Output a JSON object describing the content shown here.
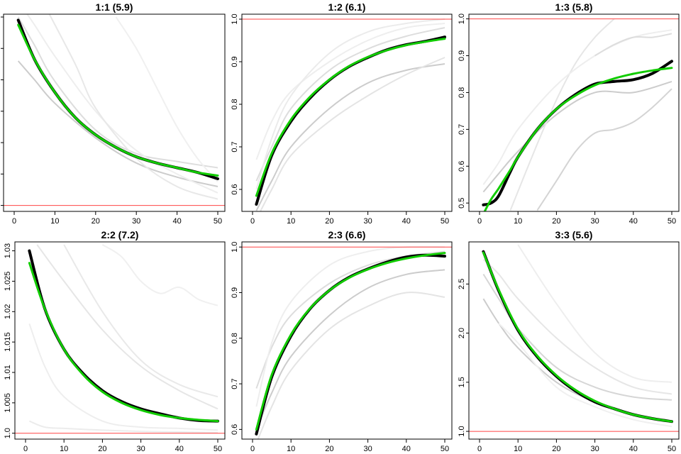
{
  "chart_data": [
    {
      "type": "line",
      "title": "1:1 (5.9)",
      "xlim": [
        0,
        50
      ],
      "ylim": [
        0.98,
        2.2
      ],
      "xticks": [
        0,
        10,
        20,
        30,
        40,
        50
      ],
      "yticks": [
        1.0,
        1.2,
        1.4,
        1.6,
        1.8,
        2.0,
        2.2
      ],
      "reference_line": 1.0,
      "series": [
        {
          "role": "observed",
          "color": "#000000",
          "x": [
            1,
            5,
            10,
            15,
            20,
            25,
            30,
            35,
            40,
            45,
            50
          ],
          "y": [
            2.18,
            1.93,
            1.72,
            1.56,
            1.45,
            1.37,
            1.31,
            1.27,
            1.24,
            1.21,
            1.17
          ]
        },
        {
          "role": "fitted",
          "color": "#11cc00",
          "x": [
            1,
            5,
            10,
            15,
            20,
            25,
            30,
            35,
            40,
            45,
            50
          ],
          "y": [
            2.15,
            1.93,
            1.72,
            1.56,
            1.45,
            1.37,
            1.31,
            1.27,
            1.24,
            1.21,
            1.19
          ]
        },
        {
          "role": "individual",
          "color": "#cccccc",
          "x": [
            1,
            5,
            10,
            20,
            30,
            40,
            50
          ],
          "y": [
            1.92,
            1.8,
            1.65,
            1.43,
            1.27,
            1.18,
            1.12
          ]
        },
        {
          "role": "individual",
          "color": "#dddddd",
          "x": [
            1,
            5,
            10,
            20,
            30,
            40,
            50
          ],
          "y": [
            2.2,
            2.02,
            1.79,
            1.48,
            1.33,
            1.28,
            1.24
          ]
        },
        {
          "role": "individual",
          "color": "#eeeeee",
          "x": [
            1,
            5,
            10,
            20,
            30,
            40,
            50
          ],
          "y": [
            2.3,
            2.15,
            1.95,
            1.6,
            1.35,
            1.2,
            1.08
          ]
        },
        {
          "role": "individual",
          "color": "#e8e8e8",
          "x": [
            8,
            15,
            20,
            30,
            40,
            50
          ],
          "y": [
            2.25,
            1.9,
            1.62,
            1.3,
            1.12,
            1.04
          ]
        },
        {
          "role": "individual",
          "color": "#f0f0f0",
          "x": [
            25,
            30,
            35,
            40,
            45,
            50
          ],
          "y": [
            2.2,
            2.0,
            1.75,
            1.5,
            1.3,
            1.15
          ]
        }
      ]
    },
    {
      "type": "line",
      "title": "1:2 (6.1)",
      "xlim": [
        0,
        50
      ],
      "ylim": [
        0.555,
        1.005
      ],
      "xticks": [
        0,
        10,
        20,
        30,
        40,
        50
      ],
      "yticks": [
        0.6,
        0.7,
        0.8,
        0.9,
        1.0
      ],
      "reference_line": 1.0,
      "series": [
        {
          "role": "observed",
          "color": "#000000",
          "x": [
            1,
            5,
            10,
            15,
            20,
            25,
            30,
            35,
            40,
            45,
            50
          ],
          "y": [
            0.565,
            0.68,
            0.76,
            0.815,
            0.857,
            0.888,
            0.91,
            0.928,
            0.94,
            0.948,
            0.958
          ]
        },
        {
          "role": "fitted",
          "color": "#11cc00",
          "x": [
            1,
            5,
            10,
            15,
            20,
            25,
            30,
            35,
            40,
            45,
            50
          ],
          "y": [
            0.585,
            0.685,
            0.764,
            0.818,
            0.858,
            0.889,
            0.911,
            0.927,
            0.939,
            0.947,
            0.954
          ]
        },
        {
          "role": "individual",
          "color": "#dddddd",
          "x": [
            1,
            5,
            10,
            20,
            30,
            40,
            50
          ],
          "y": [
            0.62,
            0.7,
            0.79,
            0.88,
            0.93,
            0.96,
            0.98
          ]
        },
        {
          "role": "individual",
          "color": "#eeeeee",
          "x": [
            1,
            5,
            10,
            20,
            30,
            40,
            50
          ],
          "y": [
            0.67,
            0.76,
            0.83,
            0.9,
            0.95,
            0.98,
            0.99
          ]
        },
        {
          "role": "individual",
          "color": "#cccccc",
          "x": [
            1,
            5,
            10,
            20,
            30,
            40,
            50
          ],
          "y": [
            0.55,
            0.62,
            0.7,
            0.79,
            0.85,
            0.88,
            0.895
          ]
        },
        {
          "role": "individual",
          "color": "#e4e4e4",
          "x": [
            1,
            5,
            10,
            20,
            30,
            40,
            50
          ],
          "y": [
            0.53,
            0.6,
            0.68,
            0.76,
            0.82,
            0.87,
            0.91
          ]
        },
        {
          "role": "individual",
          "color": "#ebebeb",
          "x": [
            1,
            5,
            10,
            20,
            30,
            40,
            50
          ],
          "y": [
            0.6,
            0.72,
            0.82,
            0.92,
            0.97,
            0.99,
            1.0
          ]
        }
      ]
    },
    {
      "type": "line",
      "title": "1:3 (5.8)",
      "xlim": [
        0,
        50
      ],
      "ylim": [
        0.485,
        1.005
      ],
      "xticks": [
        0,
        10,
        20,
        30,
        40,
        50
      ],
      "yticks": [
        0.5,
        0.6,
        0.7,
        0.8,
        0.9,
        1.0
      ],
      "reference_line": 1.0,
      "series": [
        {
          "role": "observed",
          "color": "#000000",
          "x": [
            1,
            3,
            5,
            8,
            10,
            15,
            20,
            25,
            30,
            35,
            40,
            45,
            50
          ],
          "y": [
            0.495,
            0.5,
            0.52,
            0.585,
            0.625,
            0.7,
            0.755,
            0.795,
            0.823,
            0.83,
            0.835,
            0.852,
            0.885
          ]
        },
        {
          "role": "fitted",
          "color": "#11cc00",
          "x": [
            1,
            3,
            5,
            8,
            10,
            15,
            20,
            25,
            30,
            35,
            40,
            45,
            50
          ],
          "y": [
            0.47,
            0.51,
            0.54,
            0.59,
            0.625,
            0.7,
            0.755,
            0.792,
            0.82,
            0.838,
            0.851,
            0.86,
            0.867
          ]
        },
        {
          "role": "individual",
          "color": "#cccccc",
          "x": [
            1,
            5,
            10,
            20,
            30,
            40,
            50
          ],
          "y": [
            0.53,
            0.58,
            0.64,
            0.74,
            0.8,
            0.8,
            0.83
          ]
        },
        {
          "role": "individual",
          "color": "#d4d4d4",
          "x": [
            15,
            20,
            25,
            30,
            35,
            40,
            45,
            50
          ],
          "y": [
            0.48,
            0.56,
            0.64,
            0.69,
            0.7,
            0.72,
            0.76,
            0.81
          ]
        },
        {
          "role": "individual",
          "color": "#e6e6e6",
          "x": [
            8,
            15,
            20,
            25,
            30,
            35
          ],
          "y": [
            0.48,
            0.66,
            0.78,
            0.88,
            0.95,
            1.0
          ]
        },
        {
          "role": "individual",
          "color": "#eeeeee",
          "x": [
            1,
            5,
            10,
            20,
            30,
            40,
            50
          ],
          "y": [
            0.55,
            0.61,
            0.7,
            0.82,
            0.9,
            0.95,
            0.97
          ]
        },
        {
          "role": "individual",
          "color": "#dddddd",
          "x": [
            30,
            35,
            40,
            45,
            50
          ],
          "y": [
            0.9,
            0.93,
            0.95,
            0.95,
            0.96
          ]
        }
      ]
    },
    {
      "type": "line",
      "title": "2:2 (7.2)",
      "xlim": [
        0,
        50
      ],
      "ylim": [
        0.9995,
        1.031
      ],
      "xticks": [
        0,
        10,
        20,
        30,
        40,
        50
      ],
      "yticks": [
        1.0,
        1.005,
        1.01,
        1.015,
        1.02,
        1.025,
        1.03
      ],
      "reference_line": 1.0,
      "series": [
        {
          "role": "observed",
          "color": "#000000",
          "x": [
            1,
            5,
            10,
            15,
            20,
            25,
            30,
            35,
            40,
            45,
            50
          ],
          "y": [
            1.03,
            1.0205,
            1.0138,
            1.0098,
            1.007,
            1.0052,
            1.004,
            1.0032,
            1.0025,
            1.0021,
            1.002
          ]
        },
        {
          "role": "fitted",
          "color": "#11cc00",
          "x": [
            1,
            5,
            10,
            15,
            20,
            25,
            30,
            35,
            40,
            45,
            50
          ],
          "y": [
            1.028,
            1.0205,
            1.0138,
            1.0096,
            1.0068,
            1.005,
            1.0038,
            1.003,
            1.0025,
            1.0022,
            1.002
          ]
        },
        {
          "role": "individual",
          "color": "#eeeeee",
          "x": [
            1,
            5,
            10,
            20,
            30,
            40,
            50
          ],
          "y": [
            1.018,
            1.011,
            1.006,
            1.002,
            1.001,
            1.0008,
            1.0005
          ]
        },
        {
          "role": "individual",
          "color": "#e6e6e6",
          "x": [
            3,
            10,
            20,
            30,
            40,
            50
          ],
          "y": [
            1.031,
            1.025,
            1.017,
            1.011,
            1.007,
            1.004
          ]
        },
        {
          "role": "individual",
          "color": "#f0f0f0",
          "x": [
            20,
            25,
            30,
            35,
            40,
            45,
            50
          ],
          "y": [
            1.031,
            1.029,
            1.025,
            1.023,
            1.024,
            1.022,
            1.021
          ]
        },
        {
          "role": "individual",
          "color": "#ececec",
          "x": [
            1,
            5,
            10,
            20,
            30,
            40,
            50
          ],
          "y": [
            1.002,
            1.001,
            1.0008,
            1.0005,
            1.0003,
            1.0002,
            1.0001
          ]
        },
        {
          "role": "individual",
          "color": "#e9e9e9",
          "x": [
            10,
            20,
            30,
            40,
            50
          ],
          "y": [
            1.031,
            1.02,
            1.012,
            1.008,
            1.006
          ]
        }
      ]
    },
    {
      "type": "line",
      "title": "2:3 (6.6)",
      "xlim": [
        0,
        50
      ],
      "ylim": [
        0.585,
        1.005
      ],
      "xticks": [
        0,
        10,
        20,
        30,
        40,
        50
      ],
      "yticks": [
        0.6,
        0.7,
        0.8,
        0.9,
        1.0
      ],
      "reference_line": 1.0,
      "series": [
        {
          "role": "observed",
          "color": "#000000",
          "x": [
            1,
            5,
            10,
            15,
            20,
            25,
            30,
            35,
            40,
            45,
            50
          ],
          "y": [
            0.59,
            0.715,
            0.805,
            0.865,
            0.905,
            0.933,
            0.952,
            0.967,
            0.978,
            0.982,
            0.98
          ]
        },
        {
          "role": "fitted",
          "color": "#11cc00",
          "x": [
            1,
            5,
            10,
            15,
            20,
            25,
            30,
            35,
            40,
            45,
            50
          ],
          "y": [
            0.6,
            0.72,
            0.808,
            0.866,
            0.905,
            0.932,
            0.951,
            0.965,
            0.975,
            0.982,
            0.987
          ]
        },
        {
          "role": "individual",
          "color": "#dddddd",
          "x": [
            1,
            5,
            10,
            20,
            30,
            40,
            50
          ],
          "y": [
            0.69,
            0.78,
            0.85,
            0.92,
            0.96,
            0.98,
            0.99
          ]
        },
        {
          "role": "individual",
          "color": "#cccccc",
          "x": [
            1,
            5,
            10,
            20,
            30,
            40,
            50
          ],
          "y": [
            0.6,
            0.68,
            0.76,
            0.85,
            0.91,
            0.94,
            0.95
          ]
        },
        {
          "role": "individual",
          "color": "#e4e4e4",
          "x": [
            1,
            5,
            10,
            20,
            30,
            40,
            50
          ],
          "y": [
            0.57,
            0.65,
            0.73,
            0.82,
            0.87,
            0.9,
            0.89
          ]
        },
        {
          "role": "individual",
          "color": "#eeeeee",
          "x": [
            1,
            5,
            10,
            20,
            30,
            40,
            50
          ],
          "y": [
            0.65,
            0.79,
            0.88,
            0.96,
            0.99,
            1.0,
            1.0
          ]
        }
      ]
    },
    {
      "type": "line",
      "title": "3:3 (5.6)",
      "xlim": [
        0,
        50
      ],
      "ylim": [
        0.95,
        2.9
      ],
      "xticks": [
        0,
        10,
        20,
        30,
        40,
        50
      ],
      "yticks": [
        1.0,
        1.5,
        2.0,
        2.5
      ],
      "reference_line": 1.0,
      "series": [
        {
          "role": "observed",
          "color": "#000000",
          "x": [
            1,
            5,
            10,
            15,
            20,
            25,
            30,
            35,
            40,
            45,
            50
          ],
          "y": [
            2.83,
            2.43,
            2.03,
            1.76,
            1.56,
            1.41,
            1.3,
            1.23,
            1.17,
            1.13,
            1.1
          ]
        },
        {
          "role": "fitted",
          "color": "#11cc00",
          "x": [
            1,
            5,
            10,
            15,
            20,
            25,
            30,
            35,
            40,
            45,
            50
          ],
          "y": [
            2.82,
            2.44,
            2.04,
            1.77,
            1.57,
            1.42,
            1.31,
            1.23,
            1.17,
            1.13,
            1.1
          ]
        },
        {
          "role": "individual",
          "color": "#cccccc",
          "x": [
            1,
            5,
            10,
            20,
            30,
            40,
            50
          ],
          "y": [
            2.35,
            2.1,
            1.85,
            1.5,
            1.3,
            1.18,
            1.1
          ]
        },
        {
          "role": "individual",
          "color": "#d6d6d6",
          "x": [
            1,
            5,
            10,
            20,
            30,
            40,
            50
          ],
          "y": [
            2.6,
            2.35,
            2.05,
            1.65,
            1.45,
            1.35,
            1.32
          ]
        },
        {
          "role": "individual",
          "color": "#eeeeee",
          "x": [
            10,
            20,
            30,
            40,
            50
          ],
          "y": [
            2.9,
            2.3,
            1.8,
            1.55,
            1.5
          ]
        },
        {
          "role": "individual",
          "color": "#e6e6e6",
          "x": [
            1,
            5,
            10,
            20,
            30,
            40,
            50
          ],
          "y": [
            2.75,
            2.6,
            2.35,
            1.95,
            1.65,
            1.45,
            1.38
          ]
        },
        {
          "role": "individual",
          "color": "#f0f0f0",
          "x": [
            5,
            10,
            20,
            30,
            40,
            50
          ],
          "y": [
            2.1,
            1.9,
            1.45,
            1.25,
            1.12,
            1.05
          ]
        }
      ]
    }
  ]
}
